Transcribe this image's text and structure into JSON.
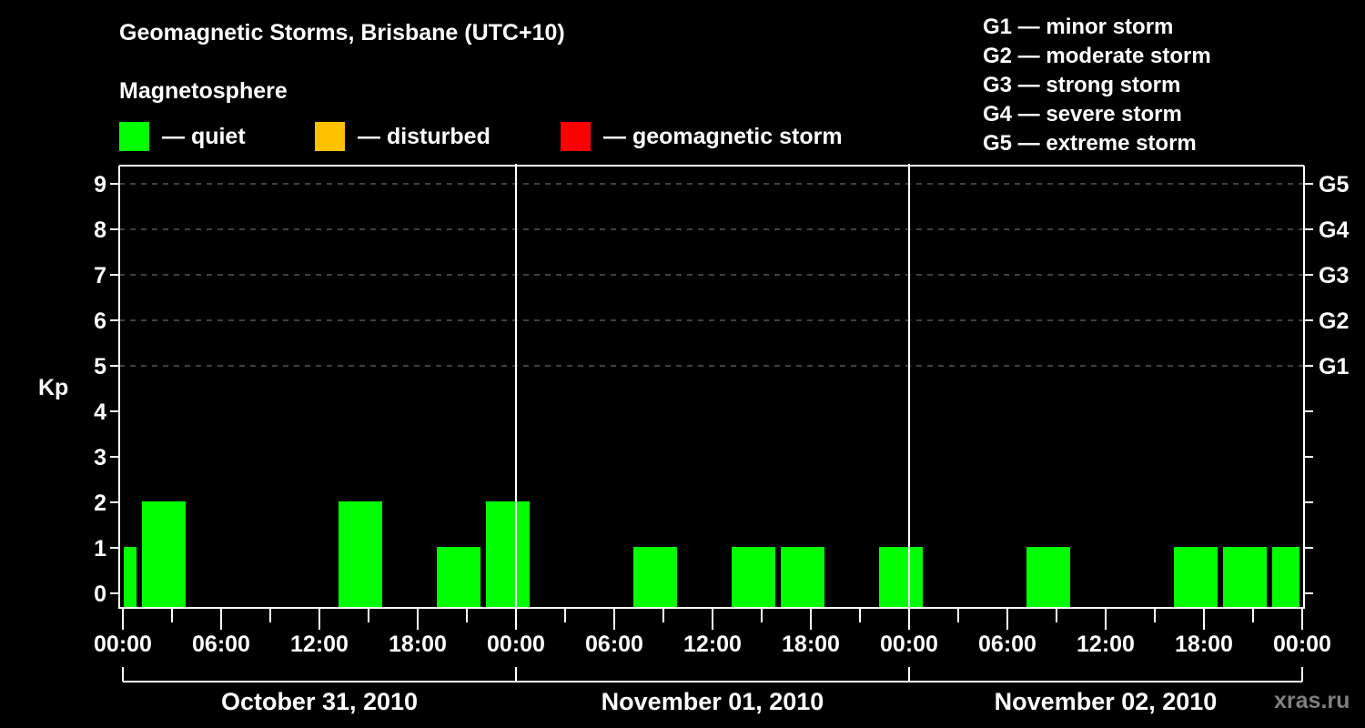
{
  "title": "Geomagnetic Storms, Brisbane (UTC+10)",
  "subtitle": "Magnetosphere",
  "legend": [
    {
      "label": "— quiet",
      "color": "#00ff00"
    },
    {
      "label": "— disturbed",
      "color": "#ffc000"
    },
    {
      "label": "— geomagnetic storm",
      "color": "#ff0000"
    }
  ],
  "g_scale_legend": [
    "G1 — minor storm",
    "G2 — moderate storm",
    "G3 — strong storm",
    "G4 — severe storm",
    "G5 — extreme storm"
  ],
  "y_axis_label": "Kp",
  "credit": "xras.ru",
  "colors": {
    "background": "#000000",
    "axis": "#ffffff",
    "grid": "#808080",
    "quiet": "#00ff00",
    "disturbed": "#ffc000",
    "storm": "#ff0000",
    "credit": "#7f7f7f"
  },
  "chart_data": {
    "type": "bar",
    "title": "Geomagnetic Storms, Brisbane (UTC+10)",
    "xlabel": "",
    "ylabel": "Kp",
    "ylim": [
      0,
      9
    ],
    "yticks": [
      0,
      1,
      2,
      3,
      4,
      5,
      6,
      7,
      8,
      9
    ],
    "right_axis_labels": [
      {
        "kp": 5,
        "label": "G1"
      },
      {
        "kp": 6,
        "label": "G2"
      },
      {
        "kp": 7,
        "label": "G3"
      },
      {
        "kp": 8,
        "label": "G4"
      },
      {
        "kp": 9,
        "label": "G5"
      }
    ],
    "grid": "dashed horizontal at Kp 5-9",
    "x_tick_labels": [
      "00:00",
      "06:00",
      "12:00",
      "18:00",
      "00:00",
      "06:00",
      "12:00",
      "18:00",
      "00:00",
      "06:00",
      "12:00",
      "18:00",
      "00:00"
    ],
    "days": [
      "October 31, 2010",
      "November 01, 2010",
      "November 02, 2010"
    ],
    "slot_hours": 3,
    "first_slot_start_local": "Oct 31 00:50 (slot boundaries offset ~50 min)",
    "bars": [
      {
        "slot": -1,
        "start": "Oct 30 21:50",
        "kp": 1,
        "level": "quiet"
      },
      {
        "slot": 0,
        "start": "Oct 31 00:50",
        "kp": 2,
        "level": "quiet"
      },
      {
        "slot": 1,
        "start": "Oct 31 03:50",
        "kp": 0,
        "level": "quiet"
      },
      {
        "slot": 2,
        "start": "Oct 31 06:50",
        "kp": 0,
        "level": "quiet"
      },
      {
        "slot": 3,
        "start": "Oct 31 09:50",
        "kp": 0,
        "level": "quiet"
      },
      {
        "slot": 4,
        "start": "Oct 31 12:50",
        "kp": 2,
        "level": "quiet"
      },
      {
        "slot": 5,
        "start": "Oct 31 15:50",
        "kp": 0,
        "level": "quiet"
      },
      {
        "slot": 6,
        "start": "Oct 31 18:50",
        "kp": 1,
        "level": "quiet"
      },
      {
        "slot": 7,
        "start": "Oct 31 21:50",
        "kp": 2,
        "level": "quiet"
      },
      {
        "slot": 8,
        "start": "Nov 01 00:50",
        "kp": 0,
        "level": "quiet"
      },
      {
        "slot": 9,
        "start": "Nov 01 03:50",
        "kp": 0,
        "level": "quiet"
      },
      {
        "slot": 10,
        "start": "Nov 01 06:50",
        "kp": 1,
        "level": "quiet"
      },
      {
        "slot": 11,
        "start": "Nov 01 09:50",
        "kp": 0,
        "level": "quiet"
      },
      {
        "slot": 12,
        "start": "Nov 01 12:50",
        "kp": 1,
        "level": "quiet"
      },
      {
        "slot": 13,
        "start": "Nov 01 15:50",
        "kp": 1,
        "level": "quiet"
      },
      {
        "slot": 14,
        "start": "Nov 01 18:50",
        "kp": 0,
        "level": "quiet"
      },
      {
        "slot": 15,
        "start": "Nov 01 21:50",
        "kp": 1,
        "level": "quiet"
      },
      {
        "slot": 16,
        "start": "Nov 02 00:50",
        "kp": 0,
        "level": "quiet"
      },
      {
        "slot": 17,
        "start": "Nov 02 03:50",
        "kp": 0,
        "level": "quiet"
      },
      {
        "slot": 18,
        "start": "Nov 02 06:50",
        "kp": 1,
        "level": "quiet"
      },
      {
        "slot": 19,
        "start": "Nov 02 09:50",
        "kp": 0,
        "level": "quiet"
      },
      {
        "slot": 20,
        "start": "Nov 02 12:50",
        "kp": 0,
        "level": "quiet"
      },
      {
        "slot": 21,
        "start": "Nov 02 15:50",
        "kp": 1,
        "level": "quiet"
      },
      {
        "slot": 22,
        "start": "Nov 02 18:50",
        "kp": 1,
        "level": "quiet"
      },
      {
        "slot": 23,
        "start": "Nov 02 21:50",
        "kp": 1,
        "level": "quiet"
      }
    ]
  }
}
